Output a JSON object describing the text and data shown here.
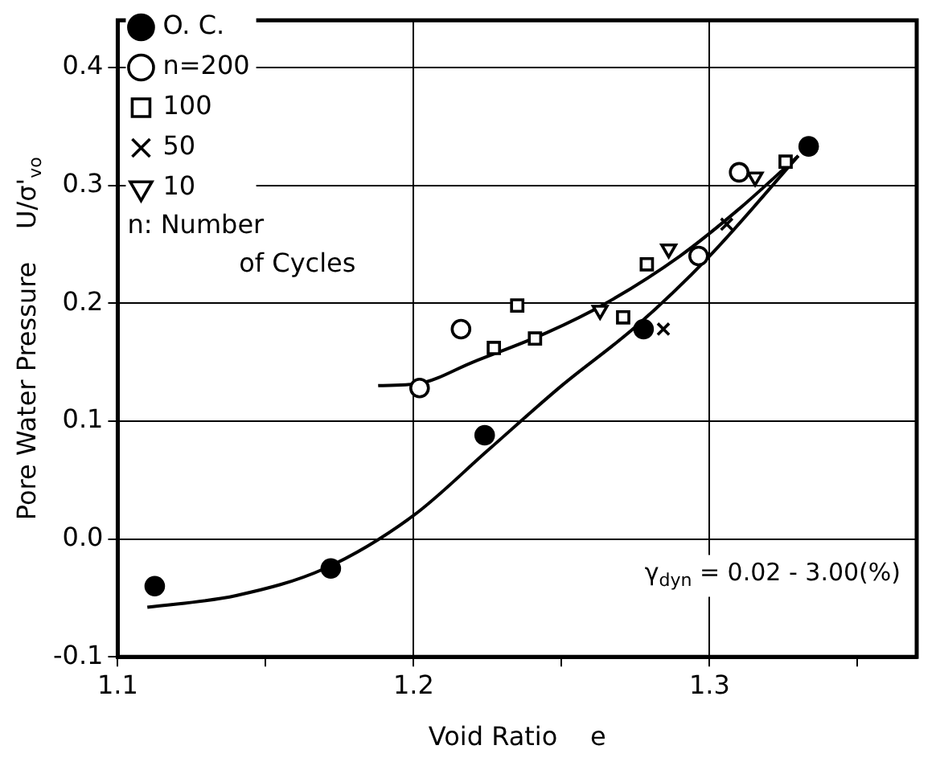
{
  "chart_data": {
    "type": "scatter",
    "xlabel": "Void Ratio    e",
    "ylabel": "Pore Water Pressure    U/σ'$_{vo}$",
    "xlim": [
      1.1,
      1.37
    ],
    "ylim": [
      -0.1,
      0.44
    ],
    "xticks": [
      1.1,
      {
        "value": 1.15,
        "label": null
      },
      1.2,
      {
        "value": 1.25,
        "label": null
      },
      1.3,
      {
        "value": 1.35,
        "label": null
      }
    ],
    "yticks": [
      -0.1,
      {
        "value": 0,
        "label": "0.0"
      },
      0.1,
      0.2,
      0.3,
      0.4
    ],
    "grid": true,
    "legend": "top left",
    "annotations": [
      "n: Number of Cycles",
      "γ$_{dyn}$ = 0.02 - 3.00(%)"
    ],
    "series": [
      {
        "name": "O. C.",
        "color": "#000000",
        "marker": "circle",
        "x": [
          1.1125,
          1.172,
          1.224,
          1.2777,
          1.3335
        ],
        "values": [
          -0.04,
          -0.025,
          0.088,
          0.178,
          0.333
        ]
      },
      {
        "name": "n=200",
        "color": "#000000",
        "marker": "circle",
        "x": [
          1.202,
          1.216,
          1.2963,
          1.31
        ],
        "values": [
          0.128,
          0.178,
          0.24,
          0.311
        ]
      },
      {
        "name": "100",
        "color": "#000000",
        "marker": "square",
        "x": [
          1.2271,
          1.235,
          1.241,
          1.2708,
          1.2788,
          1.3257
        ],
        "values": [
          0.162,
          0.198,
          0.17,
          0.188,
          0.233,
          0.32
        ]
      },
      {
        "name": "50",
        "color": "#000000",
        "marker": "cross",
        "x": [
          1.2844,
          1.3058
        ],
        "values": [
          0.178,
          0.267
        ]
      },
      {
        "name": "10",
        "color": "#000000",
        "marker": "triangle",
        "x": [
          1.263,
          1.2862,
          1.3154
        ],
        "values": [
          0.194,
          0.246,
          0.307
        ]
      },
      {
        "type": "line",
        "color": "#000000",
        "marker": "none",
        "x": [
          1.11,
          1.14,
          1.17,
          1.2,
          1.225,
          1.25,
          1.275,
          1.3,
          1.33
        ],
        "values": [
          -0.058,
          -0.048,
          -0.025,
          0.02,
          0.075,
          0.13,
          0.18,
          0.24,
          0.325
        ]
      },
      {
        "type": "line",
        "color": "#000000",
        "marker": "none",
        "x": [
          1.188,
          1.202,
          1.22,
          1.245,
          1.265,
          1.29,
          1.31,
          1.33
        ],
        "values": [
          0.13,
          0.132,
          0.15,
          0.175,
          0.2,
          0.24,
          0.28,
          0.325
        ]
      }
    ]
  }
}
